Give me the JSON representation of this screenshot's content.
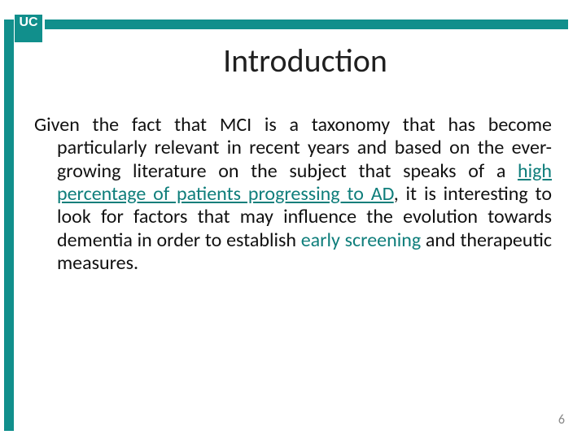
{
  "theme": {
    "accent_color": "#118f8c",
    "top_bar_color": "#118f8c",
    "left_bar_color": "#118f8c",
    "text_color": "#111111",
    "highlight_color": "#0f7e7b",
    "page_num_color": "#8a8a8a",
    "background": "#ffffff"
  },
  "logo": {
    "text": "UC"
  },
  "title": {
    "text": "Introduction",
    "fontsize": 40
  },
  "body": {
    "fontsize": 24,
    "pre1": "Given the fact that MCI is a taxonomy that has become particularly relevant in recent years and based on the ever-growing literature on the subject that speaks of a ",
    "hl1": "high percentage of patients progressing to AD",
    "mid1": ", it is interesting to look for factors that may influence the evolution towards dementia in order to establish ",
    "hl2": "early screening",
    "post1": " and therapeutic measures."
  },
  "page_number": {
    "text": "6",
    "fontsize": 16
  }
}
